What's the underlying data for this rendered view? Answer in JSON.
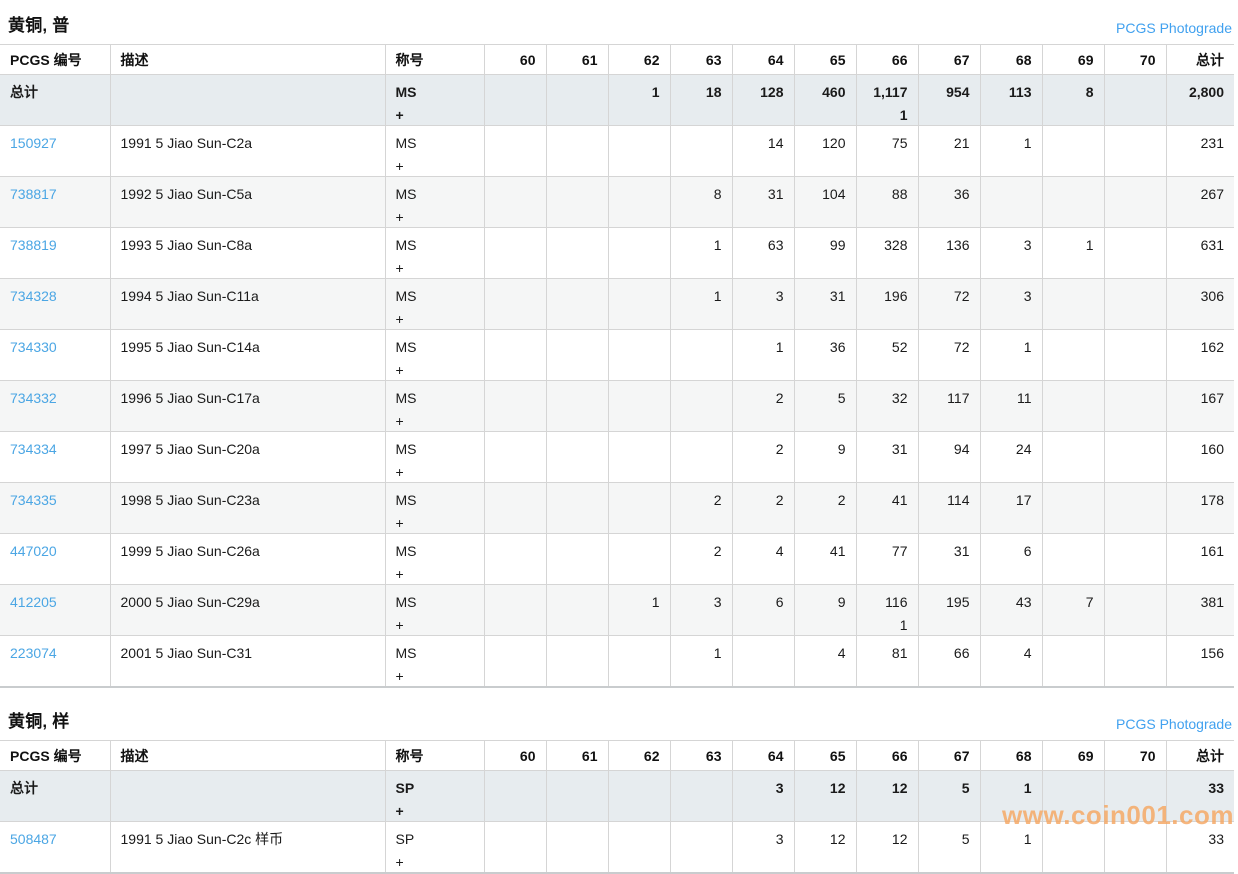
{
  "watermark": "www.coin001.com",
  "colors": {
    "link_blue": "#4ba6e4",
    "photograde_blue": "#41a1ef",
    "totals_row_bg": "#e7ecef",
    "watermark_orange": "#f6a55e"
  },
  "columns": {
    "pcgs": "PCGS 编号",
    "desc": "描述",
    "designation": "称号",
    "grades": [
      "60",
      "61",
      "62",
      "63",
      "64",
      "65",
      "66",
      "67",
      "68",
      "69",
      "70"
    ],
    "total": "总计"
  },
  "sections": [
    {
      "title": "黄铜, 普",
      "photograde_label": "PCGS Photograde",
      "total_label": "总计",
      "designation": "MS",
      "plus_sign": "+",
      "totals": {
        "grades": [
          "",
          "",
          "1",
          "18",
          "128",
          "460",
          "1,117",
          "954",
          "113",
          "8",
          ""
        ],
        "plus": [
          "",
          "",
          "",
          "",
          "",
          "",
          "1",
          "",
          "",
          "",
          ""
        ],
        "total": "2,800"
      },
      "rows": [
        {
          "id": "150927",
          "desc": "1991 5 Jiao Sun-C2a",
          "grades": [
            "",
            "",
            "",
            "",
            "14",
            "120",
            "75",
            "21",
            "1",
            "",
            ""
          ],
          "total": "231"
        },
        {
          "id": "738817",
          "desc": "1992 5 Jiao Sun-C5a",
          "grades": [
            "",
            "",
            "",
            "8",
            "31",
            "104",
            "88",
            "36",
            "",
            "",
            ""
          ],
          "total": "267"
        },
        {
          "id": "738819",
          "desc": "1993 5 Jiao Sun-C8a",
          "grades": [
            "",
            "",
            "",
            "1",
            "63",
            "99",
            "328",
            "136",
            "3",
            "1",
            ""
          ],
          "total": "631"
        },
        {
          "id": "734328",
          "desc": "1994 5 Jiao Sun-C11a",
          "grades": [
            "",
            "",
            "",
            "1",
            "3",
            "31",
            "196",
            "72",
            "3",
            "",
            ""
          ],
          "total": "306"
        },
        {
          "id": "734330",
          "desc": "1995 5 Jiao Sun-C14a",
          "grades": [
            "",
            "",
            "",
            "",
            "1",
            "36",
            "52",
            "72",
            "1",
            "",
            ""
          ],
          "total": "162"
        },
        {
          "id": "734332",
          "desc": "1996 5 Jiao Sun-C17a",
          "grades": [
            "",
            "",
            "",
            "",
            "2",
            "5",
            "32",
            "117",
            "11",
            "",
            ""
          ],
          "total": "167"
        },
        {
          "id": "734334",
          "desc": "1997 5 Jiao Sun-C20a",
          "grades": [
            "",
            "",
            "",
            "",
            "2",
            "9",
            "31",
            "94",
            "24",
            "",
            ""
          ],
          "total": "160"
        },
        {
          "id": "734335",
          "desc": "1998 5 Jiao Sun-C23a",
          "grades": [
            "",
            "",
            "",
            "2",
            "2",
            "2",
            "41",
            "114",
            "17",
            "",
            ""
          ],
          "total": "178"
        },
        {
          "id": "447020",
          "desc": "1999 5 Jiao Sun-C26a",
          "grades": [
            "",
            "",
            "",
            "2",
            "4",
            "41",
            "77",
            "31",
            "6",
            "",
            ""
          ],
          "total": "161"
        },
        {
          "id": "412205",
          "desc": "2000 5 Jiao Sun-C29a",
          "grades": [
            "",
            "",
            "1",
            "3",
            "6",
            "9",
            "116",
            "195",
            "43",
            "7",
            ""
          ],
          "plus": [
            "",
            "",
            "",
            "",
            "",
            "",
            "1",
            "",
            "",
            "",
            ""
          ],
          "total": "381"
        },
        {
          "id": "223074",
          "desc": "2001 5 Jiao Sun-C31",
          "grades": [
            "",
            "",
            "",
            "1",
            "",
            "4",
            "81",
            "66",
            "4",
            "",
            ""
          ],
          "total": "156"
        }
      ]
    },
    {
      "title": "黄铜, 样",
      "photograde_label": "PCGS Photograde",
      "total_label": "总计",
      "designation": "SP",
      "plus_sign": "+",
      "totals": {
        "grades": [
          "",
          "",
          "",
          "",
          "3",
          "12",
          "12",
          "5",
          "1",
          "",
          ""
        ],
        "plus": [
          "",
          "",
          "",
          "",
          "",
          "",
          "",
          "",
          "",
          "",
          ""
        ],
        "total": "33"
      },
      "rows": [
        {
          "id": "508487",
          "desc": "1991 5 Jiao Sun-C2c 样币",
          "grades": [
            "",
            "",
            "",
            "",
            "3",
            "12",
            "12",
            "5",
            "1",
            "",
            ""
          ],
          "total": "33"
        }
      ]
    }
  ]
}
